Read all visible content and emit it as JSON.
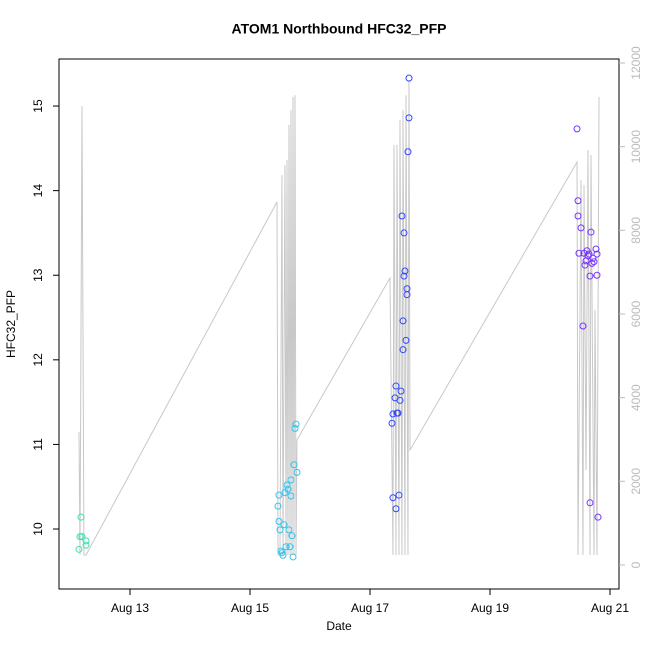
{
  "chart_data": {
    "type": "scatter",
    "title": "ATOM1 Northbound HFC32_PFP",
    "x_label": "Date",
    "y_label": "HFC32_PFP",
    "xlim": [
      11.817,
      21.15
    ],
    "xticks": [
      {
        "value": 13,
        "label": "Aug 13"
      },
      {
        "value": 15,
        "label": "Aug 15"
      },
      {
        "value": 17,
        "label": "Aug 17"
      },
      {
        "value": 19,
        "label": "Aug 19"
      },
      {
        "value": 21,
        "label": "Aug 21"
      }
    ],
    "ylim": [
      9.291,
      15.556
    ],
    "yticks": [
      10,
      11,
      12,
      13,
      14,
      15
    ],
    "y2lim": [
      -574,
      12096
    ],
    "y2ticks": [
      0,
      2000,
      4000,
      6000,
      8000,
      10000,
      12000
    ],
    "series": [
      {
        "color": "#3fe0b0",
        "x": [
          12.15,
          12.167,
          12.2,
          12.183,
          12.267,
          12.267
        ],
        "values": [
          9.76,
          9.91,
          9.91,
          10.14,
          9.81,
          9.86
        ]
      },
      {
        "color": "#33c4ee",
        "x": [
          15.467,
          15.483,
          15.483,
          15.5,
          15.517,
          15.533,
          15.55,
          15.567,
          15.583,
          15.6,
          15.617,
          15.633,
          15.65,
          15.667,
          15.683,
          15.683,
          15.7,
          15.717,
          15.733,
          15.75,
          15.767,
          15.783
        ],
        "values": [
          10.27,
          10.4,
          10.09,
          9.99,
          9.74,
          9.72,
          9.69,
          10.05,
          10.43,
          9.79,
          10.52,
          10.47,
          9.99,
          9.79,
          10.58,
          10.39,
          9.92,
          9.67,
          10.76,
          11.19,
          11.24,
          10.67
        ]
      },
      {
        "color": "#3348ff",
        "x": [
          17.367,
          17.383,
          17.383,
          17.417,
          17.433,
          17.433,
          17.45,
          17.467,
          17.483,
          17.5,
          17.517,
          17.533,
          17.55,
          17.567,
          17.55,
          17.567,
          17.583,
          17.6,
          17.617,
          17.617,
          17.633,
          17.65,
          17.65
        ],
        "values": [
          11.25,
          11.36,
          10.37,
          11.55,
          10.24,
          11.69,
          11.37,
          11.37,
          10.4,
          11.52,
          11.63,
          13.7,
          12.12,
          13.5,
          12.46,
          12.99,
          13.05,
          12.23,
          12.84,
          12.77,
          14.46,
          14.86,
          15.33
        ]
      },
      {
        "color": "#7733ff",
        "x": [
          20.45,
          20.467,
          20.467,
          20.483,
          20.517,
          20.55,
          20.567,
          20.583,
          20.6,
          20.617,
          20.633,
          20.65,
          20.667,
          20.667,
          20.683,
          20.7,
          20.717,
          20.733,
          20.767,
          20.783,
          20.783,
          20.8
        ],
        "values": [
          14.73,
          13.88,
          13.7,
          13.26,
          13.56,
          12.4,
          13.26,
          13.12,
          13.17,
          13.29,
          13.23,
          13.25,
          10.31,
          12.99,
          13.51,
          13.14,
          13.2,
          13.16,
          13.31,
          13.25,
          13.0,
          10.14
        ]
      },
      {
        "type": "line",
        "axis": "y2",
        "color": "#c8c8c8",
        "x": [
          12.15,
          12.167,
          12.2,
          12.233,
          12.267,
          15.45,
          15.467,
          15.5,
          15.533,
          15.55,
          15.583,
          15.6,
          15.617,
          15.633,
          15.65,
          15.667,
          15.683,
          15.7,
          15.717,
          15.733,
          15.75,
          15.767,
          15.783,
          17.333,
          17.383,
          17.4,
          17.433,
          17.45,
          17.483,
          17.5,
          17.533,
          17.55,
          17.583,
          17.6,
          17.633,
          17.65,
          17.667,
          20.45,
          20.467,
          20.517,
          20.55,
          20.567,
          20.6,
          20.633,
          20.667,
          20.683,
          20.733,
          20.75,
          20.783,
          20.817
        ],
        "values": [
          3180,
          240,
          10970,
          240,
          240,
          8680,
          240,
          240,
          9320,
          240,
          9560,
          240,
          9680,
          240,
          10520,
          240,
          10880,
          240,
          11190,
          240,
          11230,
          240,
          2990,
          6860,
          240,
          10040,
          240,
          10040,
          240,
          10640,
          240,
          10880,
          240,
          11230,
          240,
          11590,
          2750,
          9630,
          240,
          9200,
          240,
          9080,
          2270,
          9920,
          240,
          9800,
          240,
          6100,
          240,
          11190
        ]
      }
    ]
  }
}
